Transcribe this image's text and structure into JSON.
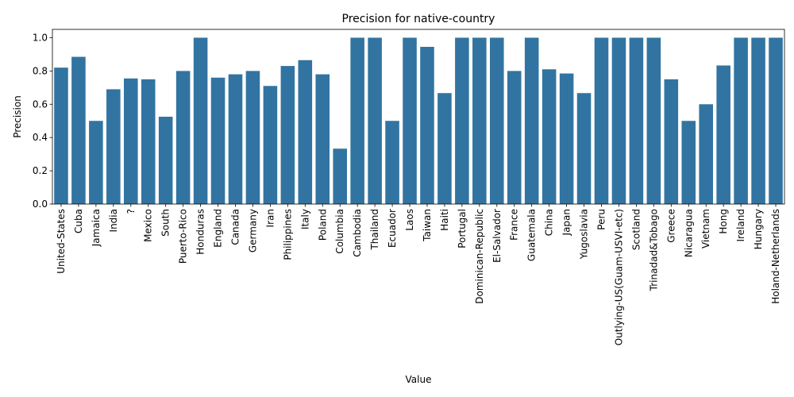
{
  "chart_data": {
    "type": "bar",
    "title": "Precision for native-country",
    "xlabel": "Value",
    "ylabel": "Precision",
    "ylim": [
      0,
      1.05
    ],
    "yticks": [
      0.0,
      0.2,
      0.4,
      0.6,
      0.8,
      1.0
    ],
    "ytick_labels": [
      "0.0",
      "0.2",
      "0.4",
      "0.6",
      "0.8",
      "1.0"
    ],
    "grid": false,
    "bar_color": "#3274a1",
    "categories": [
      "United-States",
      "Cuba",
      "Jamaica",
      "India",
      "?",
      "Mexico",
      "South",
      "Puerto-Rico",
      "Honduras",
      "England",
      "Canada",
      "Germany",
      "Iran",
      "Philippines",
      "Italy",
      "Poland",
      "Columbia",
      "Cambodia",
      "Thailand",
      "Ecuador",
      "Laos",
      "Taiwan",
      "Haiti",
      "Portugal",
      "Dominican-Republic",
      "El-Salvador",
      "France",
      "Guatemala",
      "China",
      "Japan",
      "Yugoslavia",
      "Peru",
      "Outlying-US(Guam-USVI-etc)",
      "Scotland",
      "Trinadad&Tobago",
      "Greece",
      "Nicaragua",
      "Vietnam",
      "Hong",
      "Ireland",
      "Hungary",
      "Holand-Netherlands"
    ],
    "values": [
      0.82,
      0.885,
      0.5,
      0.69,
      0.755,
      0.75,
      0.525,
      0.8,
      1.0,
      0.76,
      0.78,
      0.8,
      0.71,
      0.83,
      0.865,
      0.78,
      0.333,
      1.0,
      1.0,
      0.5,
      1.0,
      0.945,
      0.667,
      1.0,
      1.0,
      1.0,
      0.8,
      1.0,
      0.81,
      0.785,
      0.667,
      1.0,
      1.0,
      1.0,
      1.0,
      0.75,
      0.5,
      0.6,
      0.833,
      1.0,
      1.0,
      1.0
    ]
  }
}
